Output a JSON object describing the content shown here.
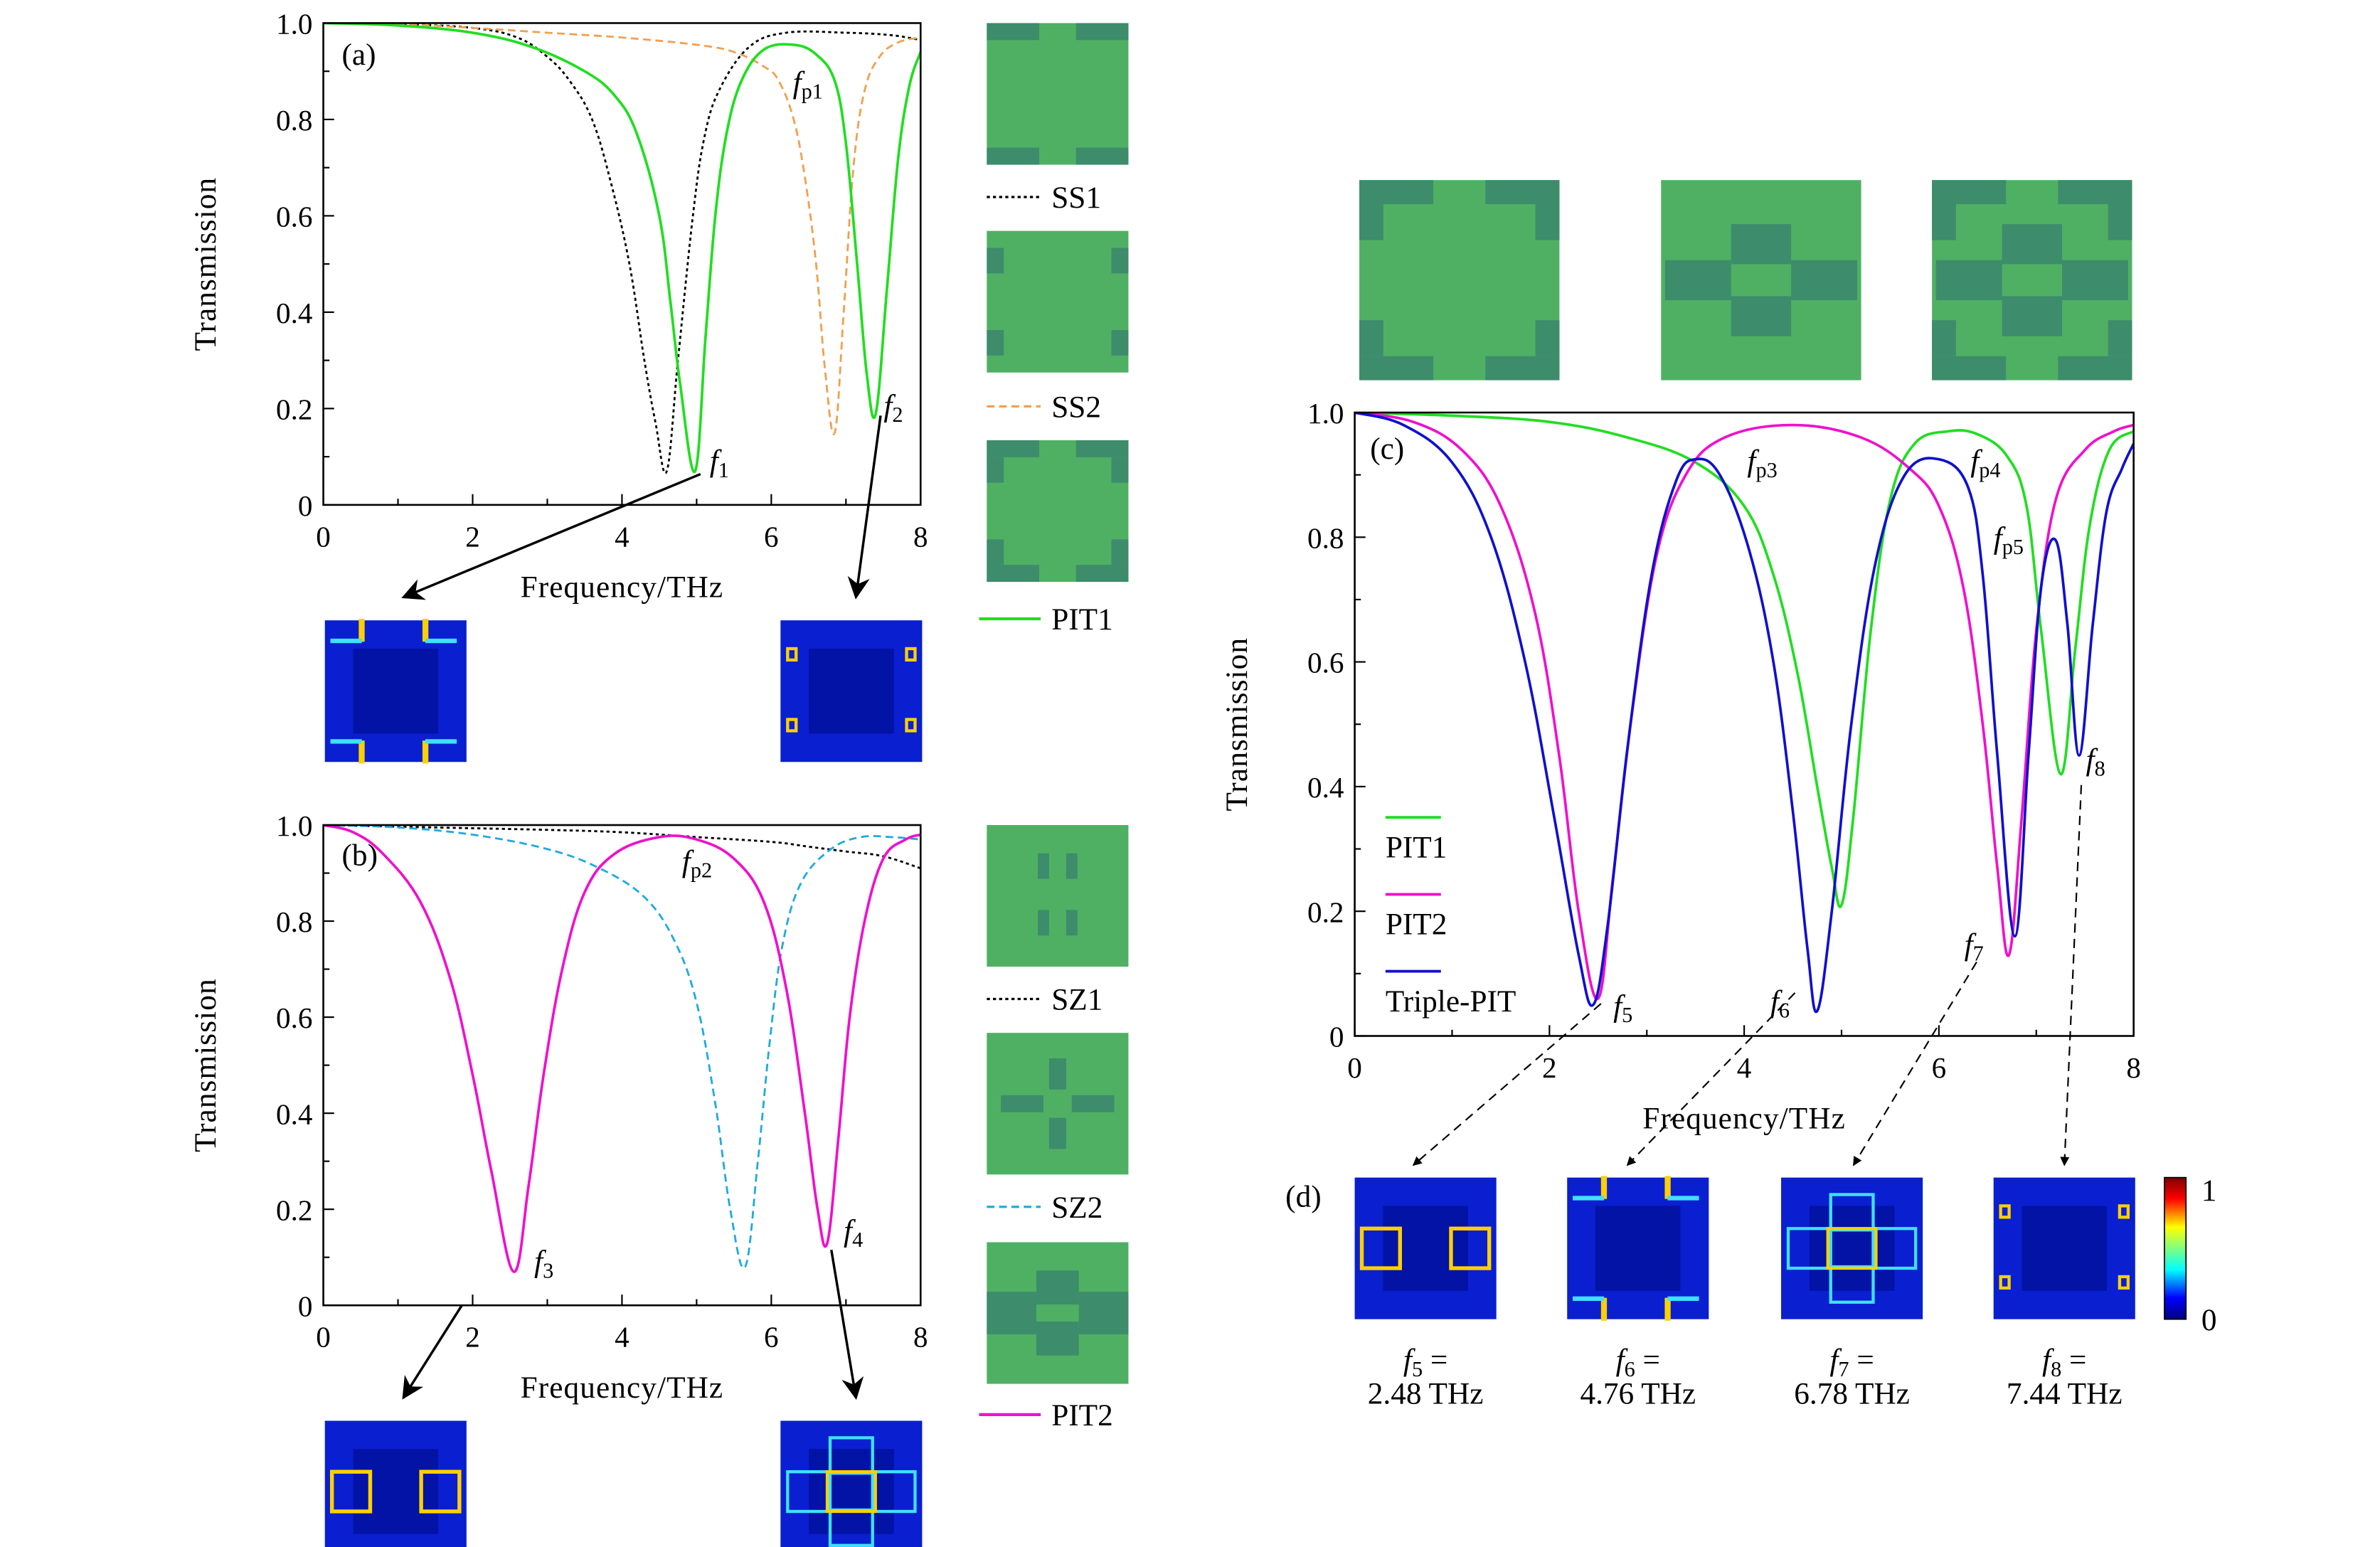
{
  "colors": {
    "PIT1": "#22dd22",
    "PIT2": "#ee11cc",
    "Triple-PIT": "#1010cc",
    "SS1": "#000000",
    "SS2": "#f0a050",
    "SZ1": "#000000",
    "SZ2": "#20aadd",
    "cell_base": "#4fb063",
    "cell_patch": "#3d8c6c"
  },
  "panels": {
    "a": "(a)",
    "b": "(b)",
    "c": "(c)",
    "d": "(d)"
  },
  "annotations": {
    "fp1": {
      "f": "f",
      "sub": "p1"
    },
    "f1": {
      "f": "f",
      "sub": "1"
    },
    "f2": {
      "f": "f",
      "sub": "2"
    },
    "fp2": {
      "f": "f",
      "sub": "p2"
    },
    "f3": {
      "f": "f",
      "sub": "3"
    },
    "f4": {
      "f": "f",
      "sub": "4"
    },
    "fp3": {
      "f": "f",
      "sub": "p3"
    },
    "fp4": {
      "f": "f",
      "sub": "p4"
    },
    "fp5": {
      "f": "f",
      "sub": "p5"
    },
    "f5": {
      "f": "f",
      "sub": "5"
    },
    "f6": {
      "f": "f",
      "sub": "6"
    },
    "f7": {
      "f": "f",
      "sub": "7"
    },
    "f8": {
      "f": "f",
      "sub": "8"
    }
  },
  "legend_a": [
    "SS1",
    "SS2",
    "PIT1"
  ],
  "legend_b": [
    "SZ1",
    "SZ2",
    "PIT2"
  ],
  "colorbar": {
    "max": "1",
    "min": "0"
  },
  "captions": [
    {
      "f": "f",
      "sub": "5",
      "eq": " =",
      "value": "2.48 THz"
    },
    {
      "f": "f",
      "sub": "6",
      "eq": " =",
      "value": "4.76 THz"
    },
    {
      "f": "f",
      "sub": "7",
      "eq": " =",
      "value": "6.78 THz"
    },
    {
      "f": "f",
      "sub": "8",
      "eq": " =",
      "value": "7.44 THz"
    }
  ],
  "chart_data": [
    {
      "id": "a",
      "type": "line",
      "xlabel": "Frequency/THz",
      "ylabel": "Transmission",
      "xlim": [
        0,
        8
      ],
      "ylim": [
        0,
        1
      ],
      "xticks": [
        {
          "v": 0,
          "t": "0"
        },
        {
          "v": 2,
          "t": "2"
        },
        {
          "v": 4,
          "t": "4"
        },
        {
          "v": 6,
          "t": "6"
        },
        {
          "v": 8,
          "t": "8"
        }
      ],
      "yticks": [
        {
          "v": 0,
          "t": "0"
        },
        {
          "v": 0.2,
          "t": "0.2"
        },
        {
          "v": 0.4,
          "t": "0.4"
        },
        {
          "v": 0.6,
          "t": "0.6"
        },
        {
          "v": 0.8,
          "t": "0.8"
        },
        {
          "v": 1,
          "t": "1.0"
        }
      ],
      "series": [
        {
          "name": "SS1",
          "style": "dotted",
          "points": [
            [
              0,
              1
            ],
            [
              1,
              0.998
            ],
            [
              2,
              0.99
            ],
            [
              2.6,
              0.97
            ],
            [
              3,
              0.93
            ],
            [
              3.3,
              0.88
            ],
            [
              3.6,
              0.8
            ],
            [
              3.85,
              0.67
            ],
            [
              4.1,
              0.5
            ],
            [
              4.3,
              0.3
            ],
            [
              4.45,
              0.17
            ],
            [
              4.6,
              0.07
            ],
            [
              4.75,
              0.3
            ],
            [
              4.95,
              0.6
            ],
            [
              5.1,
              0.76
            ],
            [
              5.3,
              0.86
            ],
            [
              5.7,
              0.95
            ],
            [
              6.2,
              0.98
            ],
            [
              7,
              0.98
            ],
            [
              7.6,
              0.975
            ],
            [
              8,
              0.965
            ]
          ]
        },
        {
          "name": "SS2",
          "style": "dashed",
          "points": [
            [
              0,
              1
            ],
            [
              1,
              0.998
            ],
            [
              2,
              0.99
            ],
            [
              3,
              0.98
            ],
            [
              4,
              0.97
            ],
            [
              5,
              0.955
            ],
            [
              5.5,
              0.94
            ],
            [
              5.9,
              0.91
            ],
            [
              6.1,
              0.88
            ],
            [
              6.3,
              0.8
            ],
            [
              6.45,
              0.68
            ],
            [
              6.6,
              0.5
            ],
            [
              6.72,
              0.28
            ],
            [
              6.85,
              0.15
            ],
            [
              6.97,
              0.4
            ],
            [
              7.1,
              0.7
            ],
            [
              7.25,
              0.86
            ],
            [
              7.45,
              0.93
            ],
            [
              7.7,
              0.96
            ],
            [
              8,
              0.97
            ]
          ]
        },
        {
          "name": "PIT1",
          "style": "solid",
          "points": [
            [
              0,
              1
            ],
            [
              1,
              0.995
            ],
            [
              2,
              0.98
            ],
            [
              2.8,
              0.95
            ],
            [
              3.5,
              0.9
            ],
            [
              3.9,
              0.85
            ],
            [
              4.2,
              0.77
            ],
            [
              4.5,
              0.6
            ],
            [
              4.65,
              0.42
            ],
            [
              4.78,
              0.25
            ],
            [
              4.98,
              0.07
            ],
            [
              5.12,
              0.35
            ],
            [
              5.25,
              0.6
            ],
            [
              5.4,
              0.77
            ],
            [
              5.6,
              0.88
            ],
            [
              5.9,
              0.945
            ],
            [
              6.3,
              0.955
            ],
            [
              6.6,
              0.935
            ],
            [
              6.85,
              0.88
            ],
            [
              7.0,
              0.75
            ],
            [
              7.15,
              0.5
            ],
            [
              7.28,
              0.27
            ],
            [
              7.4,
              0.19
            ],
            [
              7.55,
              0.45
            ],
            [
              7.7,
              0.72
            ],
            [
              7.85,
              0.87
            ],
            [
              8,
              0.94
            ]
          ]
        }
      ]
    },
    {
      "id": "b",
      "type": "line",
      "xlabel": "Frequency/THz",
      "ylabel": "Transmission",
      "xlim": [
        0,
        8
      ],
      "ylim": [
        0,
        1
      ],
      "xticks": [
        {
          "v": 0,
          "t": "0"
        },
        {
          "v": 2,
          "t": "2"
        },
        {
          "v": 4,
          "t": "4"
        },
        {
          "v": 6,
          "t": "6"
        },
        {
          "v": 8,
          "t": "8"
        }
      ],
      "yticks": [
        {
          "v": 0,
          "t": "0"
        },
        {
          "v": 0.2,
          "t": "0.2"
        },
        {
          "v": 0.4,
          "t": "0.4"
        },
        {
          "v": 0.6,
          "t": "0.6"
        },
        {
          "v": 0.8,
          "t": "0.8"
        },
        {
          "v": 1,
          "t": "1.0"
        }
      ],
      "series": [
        {
          "name": "SZ1",
          "style": "dotted",
          "points": [
            [
              0,
              1
            ],
            [
              1.5,
              0.995
            ],
            [
              3,
              0.99
            ],
            [
              4,
              0.985
            ],
            [
              5,
              0.975
            ],
            [
              6,
              0.965
            ],
            [
              6.5,
              0.955
            ],
            [
              7,
              0.945
            ],
            [
              7.5,
              0.935
            ],
            [
              8,
              0.91
            ]
          ]
        },
        {
          "name": "SZ2",
          "style": "dashed",
          "points": [
            [
              0,
              1
            ],
            [
              1,
              0.995
            ],
            [
              2,
              0.98
            ],
            [
              3,
              0.95
            ],
            [
              3.7,
              0.91
            ],
            [
              4.3,
              0.85
            ],
            [
              4.7,
              0.76
            ],
            [
              5.0,
              0.63
            ],
            [
              5.25,
              0.42
            ],
            [
              5.45,
              0.2
            ],
            [
              5.65,
              0.08
            ],
            [
              5.82,
              0.3
            ],
            [
              5.98,
              0.55
            ],
            [
              6.15,
              0.75
            ],
            [
              6.4,
              0.88
            ],
            [
              6.8,
              0.95
            ],
            [
              7.2,
              0.975
            ],
            [
              7.6,
              0.975
            ],
            [
              8,
              0.97
            ]
          ]
        },
        {
          "name": "PIT2",
          "style": "solid",
          "points": [
            [
              0,
              1
            ],
            [
              0.4,
              0.985
            ],
            [
              0.8,
              0.94
            ],
            [
              1.3,
              0.84
            ],
            [
              1.7,
              0.68
            ],
            [
              2.0,
              0.48
            ],
            [
              2.25,
              0.28
            ],
            [
              2.55,
              0.07
            ],
            [
              2.75,
              0.25
            ],
            [
              2.95,
              0.48
            ],
            [
              3.2,
              0.7
            ],
            [
              3.5,
              0.86
            ],
            [
              3.9,
              0.94
            ],
            [
              4.5,
              0.975
            ],
            [
              5.0,
              0.97
            ],
            [
              5.5,
              0.93
            ],
            [
              5.9,
              0.84
            ],
            [
              6.2,
              0.66
            ],
            [
              6.45,
              0.4
            ],
            [
              6.62,
              0.2
            ],
            [
              6.75,
              0.13
            ],
            [
              6.9,
              0.35
            ],
            [
              7.05,
              0.6
            ],
            [
              7.25,
              0.8
            ],
            [
              7.5,
              0.93
            ],
            [
              7.8,
              0.97
            ],
            [
              8,
              0.98
            ]
          ]
        }
      ]
    },
    {
      "id": "c",
      "type": "line",
      "xlabel": "Frequency/THz",
      "ylabel": "Transmission",
      "xlim": [
        0,
        8
      ],
      "ylim": [
        0,
        1
      ],
      "legend": "bottom-left",
      "xticks": [
        {
          "v": 0,
          "t": "0"
        },
        {
          "v": 2,
          "t": "2"
        },
        {
          "v": 4,
          "t": "4"
        },
        {
          "v": 6,
          "t": "6"
        },
        {
          "v": 8,
          "t": "8"
        }
      ],
      "yticks": [
        {
          "v": 0,
          "t": "0"
        },
        {
          "v": 0.2,
          "t": "0.2"
        },
        {
          "v": 0.4,
          "t": "0.4"
        },
        {
          "v": 0.6,
          "t": "0.6"
        },
        {
          "v": 0.8,
          "t": "0.8"
        },
        {
          "v": 1,
          "t": "1.0"
        }
      ],
      "series": [
        {
          "name": "PIT1",
          "style": "solid",
          "points": [
            [
              0,
              1
            ],
            [
              1,
              0.995
            ],
            [
              2,
              0.985
            ],
            [
              2.8,
              0.96
            ],
            [
              3.5,
              0.92
            ],
            [
              4,
              0.85
            ],
            [
              4.3,
              0.74
            ],
            [
              4.55,
              0.58
            ],
            [
              4.75,
              0.4
            ],
            [
              4.9,
              0.27
            ],
            [
              5.0,
              0.21
            ],
            [
              5.12,
              0.35
            ],
            [
              5.3,
              0.65
            ],
            [
              5.5,
              0.86
            ],
            [
              5.75,
              0.95
            ],
            [
              6.1,
              0.97
            ],
            [
              6.4,
              0.965
            ],
            [
              6.7,
              0.93
            ],
            [
              6.9,
              0.85
            ],
            [
              7.05,
              0.65
            ],
            [
              7.25,
              0.42
            ],
            [
              7.4,
              0.62
            ],
            [
              7.55,
              0.82
            ],
            [
              7.75,
              0.94
            ],
            [
              8,
              0.97
            ]
          ]
        },
        {
          "name": "PIT2",
          "style": "solid",
          "points": [
            [
              0,
              1
            ],
            [
              0.6,
              0.985
            ],
            [
              1.1,
              0.94
            ],
            [
              1.5,
              0.85
            ],
            [
              1.85,
              0.68
            ],
            [
              2.1,
              0.45
            ],
            [
              2.3,
              0.2
            ],
            [
              2.5,
              0.06
            ],
            [
              2.65,
              0.25
            ],
            [
              2.85,
              0.52
            ],
            [
              3.1,
              0.77
            ],
            [
              3.4,
              0.9
            ],
            [
              3.8,
              0.96
            ],
            [
              4.5,
              0.98
            ],
            [
              5.2,
              0.96
            ],
            [
              5.7,
              0.91
            ],
            [
              6.0,
              0.85
            ],
            [
              6.25,
              0.72
            ],
            [
              6.45,
              0.5
            ],
            [
              6.6,
              0.27
            ],
            [
              6.72,
              0.13
            ],
            [
              6.85,
              0.35
            ],
            [
              7.0,
              0.65
            ],
            [
              7.2,
              0.86
            ],
            [
              7.5,
              0.94
            ],
            [
              7.8,
              0.97
            ],
            [
              8,
              0.98
            ]
          ]
        },
        {
          "name": "Triple-PIT",
          "style": "solid",
          "points": [
            [
              0,
              1
            ],
            [
              0.5,
              0.98
            ],
            [
              1.0,
              0.92
            ],
            [
              1.4,
              0.8
            ],
            [
              1.75,
              0.6
            ],
            [
              2.05,
              0.35
            ],
            [
              2.3,
              0.13
            ],
            [
              2.45,
              0.05
            ],
            [
              2.6,
              0.18
            ],
            [
              2.8,
              0.46
            ],
            [
              3.05,
              0.74
            ],
            [
              3.3,
              0.89
            ],
            [
              3.5,
              0.925
            ],
            [
              3.75,
              0.9
            ],
            [
              4.05,
              0.78
            ],
            [
              4.3,
              0.6
            ],
            [
              4.5,
              0.36
            ],
            [
              4.65,
              0.14
            ],
            [
              4.75,
              0.04
            ],
            [
              4.9,
              0.2
            ],
            [
              5.1,
              0.5
            ],
            [
              5.35,
              0.76
            ],
            [
              5.65,
              0.9
            ],
            [
              6.0,
              0.925
            ],
            [
              6.3,
              0.88
            ],
            [
              6.45,
              0.74
            ],
            [
              6.6,
              0.45
            ],
            [
              6.78,
              0.16
            ],
            [
              6.92,
              0.45
            ],
            [
              7.05,
              0.72
            ],
            [
              7.2,
              0.795
            ],
            [
              7.32,
              0.66
            ],
            [
              7.44,
              0.45
            ],
            [
              7.58,
              0.66
            ],
            [
              7.72,
              0.84
            ],
            [
              7.88,
              0.91
            ],
            [
              8,
              0.95
            ]
          ]
        }
      ]
    }
  ]
}
